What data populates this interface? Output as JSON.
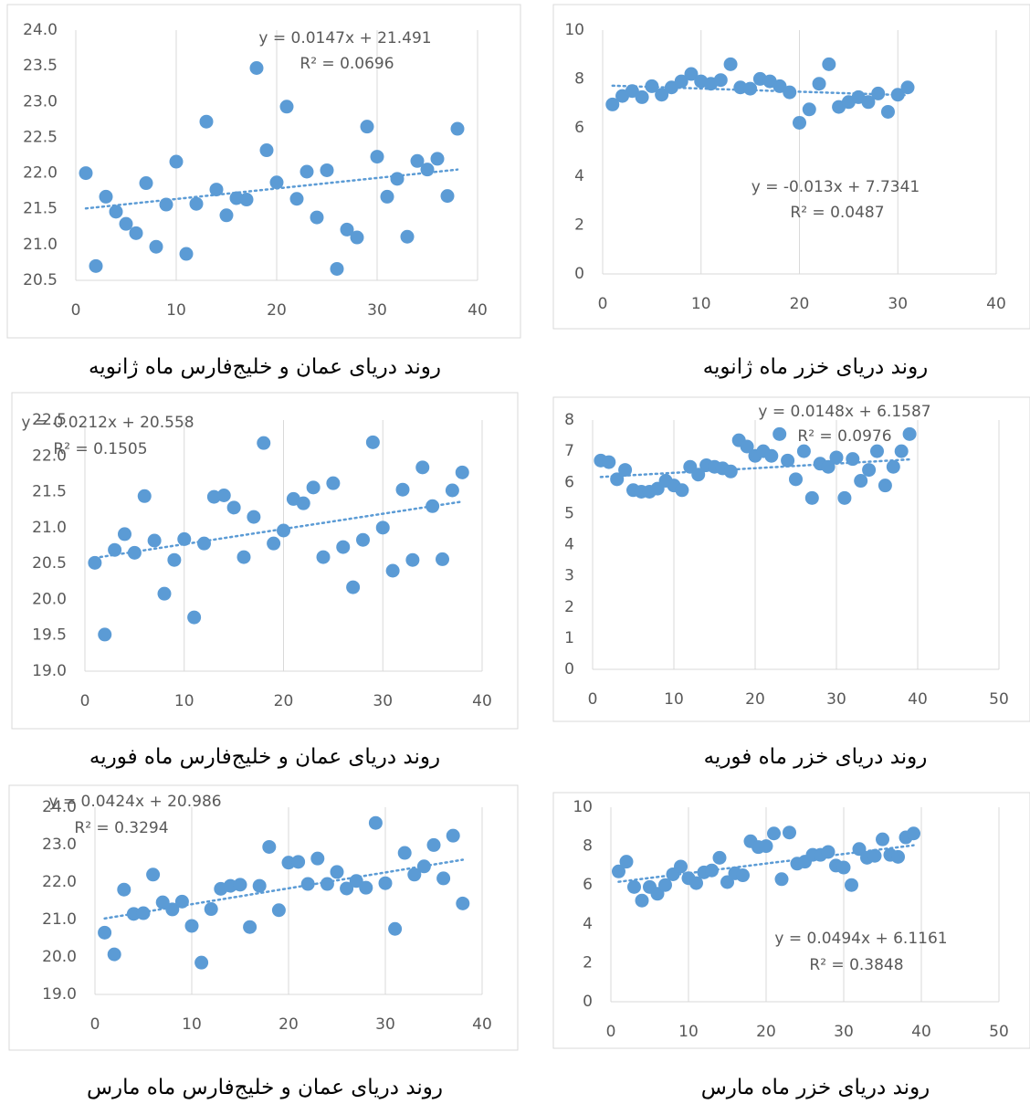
{
  "chart_data": [
    {
      "type": "scatter",
      "caption": "روند دریای عمان و خلیج‌فارس ماه ژانویه",
      "color": "#5b9bd5",
      "grid": true,
      "x": [
        1,
        2,
        3,
        4,
        5,
        6,
        7,
        8,
        9,
        10,
        11,
        12,
        13,
        14,
        15,
        16,
        17,
        18,
        19,
        20,
        21,
        22,
        23,
        24,
        25,
        26,
        27,
        28,
        29,
        30,
        31,
        32,
        33,
        34,
        35,
        36,
        37,
        38
      ],
      "y": [
        22.0,
        20.7,
        21.67,
        21.46,
        21.29,
        21.16,
        21.86,
        20.97,
        21.56,
        22.16,
        20.87,
        21.57,
        22.72,
        21.77,
        21.41,
        21.65,
        21.63,
        23.47,
        22.32,
        21.87,
        22.93,
        21.64,
        22.02,
        21.38,
        22.04,
        20.66,
        21.21,
        21.1,
        22.65,
        22.23,
        21.67,
        21.92,
        21.11,
        22.17,
        22.05,
        22.2,
        21.68,
        22.62
      ],
      "trendline": {
        "slope": 0.0147,
        "intercept": 21.491,
        "label": "y = 0.0147x + 21.491",
        "r2_label": "R² = 0.0696"
      },
      "xlim": [
        0,
        40
      ],
      "xticks": [
        0,
        10,
        20,
        30,
        40
      ],
      "ylim": [
        20.5,
        24
      ],
      "yticks": [
        20.5,
        {
          "value": 21,
          "label": "21.0"
        },
        21.5,
        {
          "value": 22,
          "label": "22.0"
        },
        22.5,
        {
          "value": 23,
          "label": "23.0"
        },
        23.5,
        {
          "value": 24,
          "label": "24.0"
        }
      ]
    },
    {
      "type": "scatter",
      "caption": "روند دریای خزر ماه ژانویه",
      "color": "#5b9bd5",
      "grid": true,
      "x": [
        1,
        2,
        3,
        4,
        5,
        6,
        7,
        8,
        9,
        10,
        11,
        12,
        13,
        14,
        15,
        16,
        17,
        18,
        19,
        20,
        21,
        22,
        23,
        24,
        25,
        26,
        27,
        28,
        29,
        30,
        31
      ],
      "y": [
        6.95,
        7.3,
        7.5,
        7.25,
        7.7,
        7.35,
        7.65,
        7.9,
        8.2,
        7.9,
        7.8,
        7.95,
        8.6,
        7.65,
        7.6,
        8.0,
        7.9,
        7.7,
        7.45,
        6.2,
        6.75,
        7.8,
        8.6,
        6.85,
        7.05,
        7.25,
        7.05,
        7.4,
        6.65,
        7.35,
        7.65
      ],
      "trendline": {
        "slope": -0.013,
        "intercept": 7.7341,
        "label": "y = -0.013x + 7.7341",
        "r2_label": "R² = 0.0487"
      },
      "xlim": [
        0,
        40
      ],
      "xticks": [
        0,
        10,
        20,
        30,
        40
      ],
      "ylim": [
        0,
        10
      ],
      "yticks": [
        0,
        2,
        4,
        6,
        8,
        10
      ]
    },
    {
      "type": "scatter",
      "caption": "روند دریای عمان و خلیج‌فارس ماه فوریه",
      "color": "#5b9bd5",
      "grid": true,
      "x": [
        1,
        2,
        3,
        4,
        5,
        6,
        7,
        8,
        9,
        10,
        11,
        12,
        13,
        14,
        15,
        16,
        17,
        18,
        19,
        20,
        21,
        22,
        23,
        24,
        25,
        26,
        27,
        28,
        29,
        30,
        31,
        32,
        33,
        34,
        35,
        36,
        37,
        38
      ],
      "y": [
        20.51,
        19.51,
        20.69,
        20.91,
        20.65,
        21.44,
        20.82,
        20.08,
        20.55,
        20.84,
        19.75,
        20.78,
        21.43,
        21.45,
        21.28,
        20.59,
        21.15,
        22.18,
        20.78,
        20.96,
        21.4,
        21.34,
        21.56,
        20.59,
        21.62,
        20.73,
        20.17,
        20.83,
        22.19,
        21.0,
        20.4,
        21.53,
        20.55,
        21.84,
        21.3,
        20.56,
        21.52,
        21.77
      ],
      "trendline": {
        "slope": 0.0212,
        "intercept": 20.558,
        "label": "y = 0.0212x + 20.558",
        "r2_label": "R² = 0.1505"
      },
      "xlim": [
        0,
        40
      ],
      "xticks": [
        0,
        10,
        20,
        30,
        40
      ],
      "ylim": [
        19,
        22.5
      ],
      "yticks": [
        {
          "value": 19,
          "label": "19.0"
        },
        19.5,
        {
          "value": 20,
          "label": "20.0"
        },
        20.5,
        {
          "value": 21,
          "label": "21.0"
        },
        21.5,
        {
          "value": 22,
          "label": "22.0"
        },
        22.5
      ]
    },
    {
      "type": "scatter",
      "caption": "روند دریای خزر ماه فوریه",
      "color": "#5b9bd5",
      "grid": true,
      "x": [
        1,
        2,
        3,
        4,
        5,
        6,
        7,
        8,
        9,
        10,
        11,
        12,
        13,
        14,
        15,
        16,
        17,
        18,
        19,
        20,
        21,
        22,
        23,
        24,
        25,
        26,
        27,
        28,
        29,
        30,
        31,
        32,
        33,
        34,
        35,
        36,
        37,
        38,
        39
      ],
      "y": [
        6.7,
        6.65,
        6.1,
        6.4,
        5.75,
        5.7,
        5.7,
        5.8,
        6.05,
        5.9,
        5.75,
        6.5,
        6.25,
        6.55,
        6.5,
        6.45,
        6.35,
        7.35,
        7.15,
        6.85,
        7.0,
        6.85,
        7.55,
        6.7,
        6.1,
        7.0,
        5.5,
        6.6,
        6.5,
        6.8,
        5.5,
        6.75,
        6.05,
        6.4,
        7.0,
        5.9,
        6.5,
        7.0,
        7.55
      ],
      "trendline": {
        "slope": 0.0148,
        "intercept": 6.1587,
        "label": "y = 0.0148x + 6.1587",
        "r2_label": "R² = 0.0976"
      },
      "xlim": [
        0,
        50
      ],
      "xticks": [
        0,
        10,
        20,
        30,
        40,
        50
      ],
      "ylim": [
        0,
        8
      ],
      "yticks": [
        0,
        1,
        2,
        3,
        4,
        5,
        6,
        7,
        8
      ]
    },
    {
      "type": "scatter",
      "caption": "روند دریای عمان و خلیج‌فارس ماه مارس",
      "color": "#5b9bd5",
      "grid": true,
      "x": [
        1,
        2,
        3,
        4,
        5,
        6,
        7,
        8,
        9,
        10,
        11,
        12,
        13,
        14,
        15,
        16,
        17,
        18,
        19,
        20,
        21,
        22,
        23,
        24,
        25,
        26,
        27,
        28,
        29,
        30,
        31,
        32,
        33,
        34,
        35,
        36,
        37,
        38
      ],
      "y": [
        20.65,
        20.07,
        21.8,
        21.15,
        21.17,
        22.2,
        21.46,
        21.27,
        21.48,
        20.83,
        19.85,
        21.28,
        21.82,
        21.9,
        21.93,
        20.8,
        21.9,
        22.94,
        21.25,
        22.52,
        22.54,
        21.95,
        22.63,
        21.95,
        22.27,
        21.83,
        22.03,
        21.85,
        23.58,
        21.97,
        20.75,
        22.78,
        22.2,
        22.42,
        22.99,
        22.1,
        23.24,
        21.43
      ],
      "trendline": {
        "slope": 0.0424,
        "intercept": 20.986,
        "label": "y = 0.0424x + 20.986",
        "r2_label": "R² = 0.3294"
      },
      "xlim": [
        0,
        40
      ],
      "xticks": [
        0,
        10,
        20,
        30,
        40
      ],
      "ylim": [
        19,
        24
      ],
      "yticks": [
        {
          "value": 19,
          "label": "19.0"
        },
        {
          "value": 20,
          "label": "20.0"
        },
        {
          "value": 21,
          "label": "21.0"
        },
        {
          "value": 22,
          "label": "22.0"
        },
        {
          "value": 23,
          "label": "23.0"
        },
        {
          "value": 24,
          "label": "24.0"
        }
      ]
    },
    {
      "type": "scatter",
      "caption": "روند دریای خزر ماه مارس",
      "color": "#5b9bd5",
      "grid": true,
      "x": [
        1,
        2,
        3,
        4,
        5,
        6,
        7,
        8,
        9,
        10,
        11,
        12,
        13,
        14,
        15,
        16,
        17,
        18,
        19,
        20,
        21,
        22,
        23,
        24,
        25,
        26,
        27,
        28,
        29,
        30,
        31,
        32,
        33,
        34,
        35,
        36,
        37,
        38,
        39
      ],
      "y": [
        6.7,
        7.2,
        5.9,
        5.2,
        5.9,
        5.55,
        6.0,
        6.55,
        6.95,
        6.35,
        6.1,
        6.65,
        6.75,
        7.4,
        6.15,
        6.6,
        6.5,
        8.25,
        7.95,
        8.0,
        8.65,
        6.3,
        8.7,
        7.1,
        7.2,
        7.55,
        7.55,
        7.7,
        7.0,
        6.9,
        6.0,
        7.85,
        7.4,
        7.5,
        8.35,
        7.55,
        7.45,
        8.45,
        8.65
      ],
      "trendline": {
        "slope": 0.0494,
        "intercept": 6.1161,
        "label": "y = 0.0494x + 6.1161",
        "r2_label": "R² = 0.3848"
      },
      "xlim": [
        0,
        50
      ],
      "xticks": [
        0,
        10,
        20,
        30,
        40,
        50
      ],
      "ylim": [
        0,
        10
      ],
      "yticks": [
        0,
        2,
        4,
        6,
        8,
        10
      ]
    }
  ]
}
